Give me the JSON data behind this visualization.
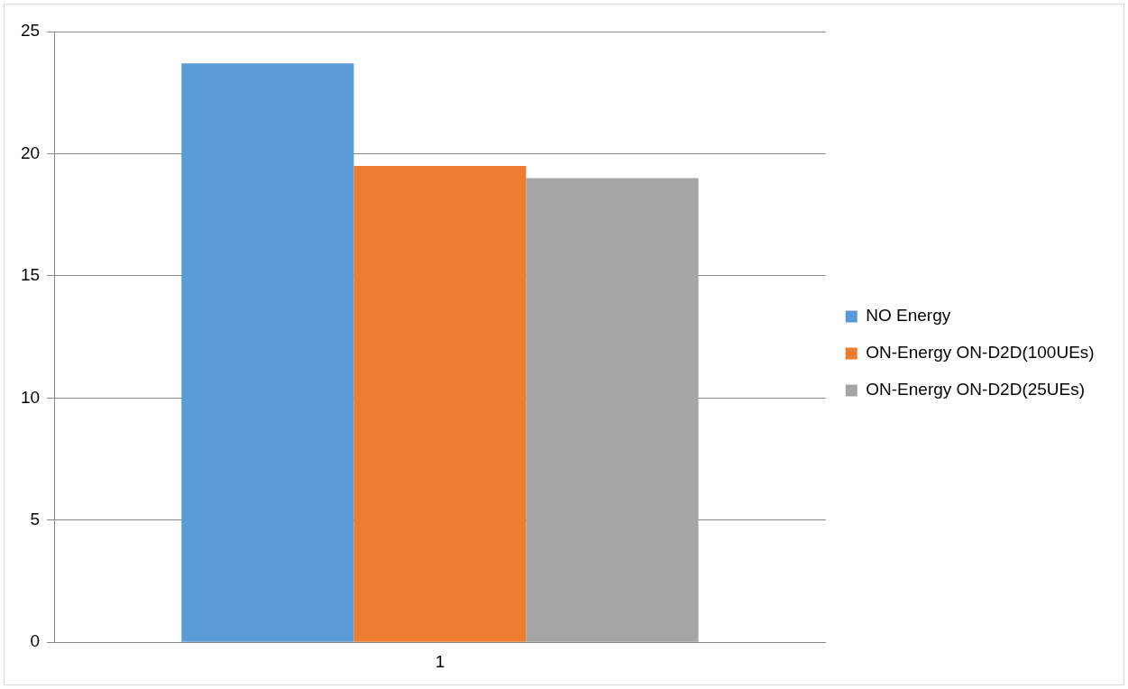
{
  "chart_data": {
    "type": "bar",
    "categories": [
      "1"
    ],
    "series": [
      {
        "name": "NO Energy",
        "color": "#5b9bd5",
        "values": [
          23.7
        ]
      },
      {
        "name": "ON-Energy ON-D2D(100UEs)",
        "color": "#ed7d31",
        "values": [
          19.5
        ]
      },
      {
        "name": "ON-Energy ON-D2D(25UEs)",
        "color": "#a5a5a5",
        "values": [
          19.0
        ]
      }
    ],
    "ylim": [
      0,
      25
    ],
    "yticks": [
      0,
      5,
      10,
      15,
      20,
      25
    ],
    "grid": "y",
    "legend": "right"
  }
}
